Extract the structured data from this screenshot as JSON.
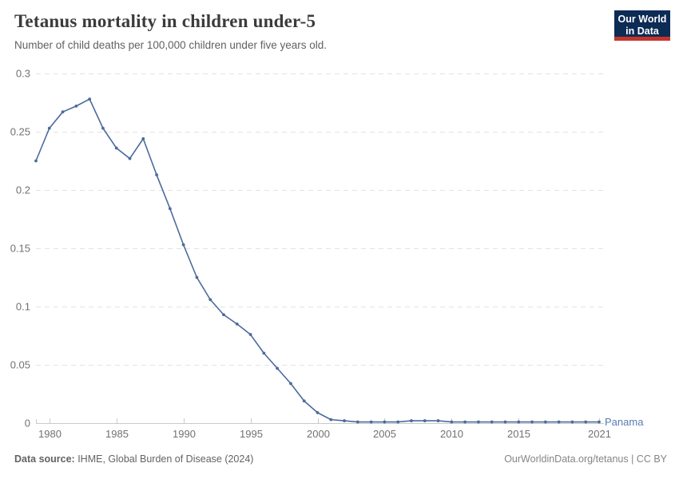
{
  "header": {
    "title": "Tetanus mortality in children under-5",
    "subtitle": "Number of child deaths per 100,000 children under five years old.",
    "logo": {
      "line1": "Our World",
      "line2": "in Data"
    }
  },
  "chart_data": {
    "type": "line",
    "title": "Tetanus mortality in children under-5",
    "subtitle": "Number of child deaths per 100,000 children under five years old.",
    "xlabel": "",
    "ylabel": "",
    "xlim": [
      1979,
      2021
    ],
    "ylim": [
      0,
      0.3
    ],
    "grid": "horizontal-dashed",
    "legend_position": "end-of-line-label",
    "x_ticks": [
      1980,
      1985,
      1990,
      1995,
      2000,
      2005,
      2010,
      2015,
      2021
    ],
    "y_ticks": [
      0,
      0.05,
      0.1,
      0.15,
      0.2,
      0.25,
      0.3
    ],
    "y_tick_labels": [
      "0",
      "0.05",
      "0.1",
      "0.15",
      "0.2",
      "0.25",
      "0.3"
    ],
    "series": [
      {
        "name": "Panama",
        "color": "#4c6a9c",
        "x": [
          1979,
          1980,
          1981,
          1982,
          1983,
          1984,
          1985,
          1986,
          1987,
          1988,
          1989,
          1990,
          1991,
          1992,
          1993,
          1994,
          1995,
          1996,
          1997,
          1998,
          1999,
          2000,
          2001,
          2002,
          2003,
          2004,
          2005,
          2006,
          2007,
          2008,
          2009,
          2010,
          2011,
          2012,
          2013,
          2014,
          2015,
          2016,
          2017,
          2018,
          2019,
          2020,
          2021
        ],
        "values": [
          0.225,
          0.253,
          0.267,
          0.272,
          0.278,
          0.253,
          0.236,
          0.227,
          0.244,
          0.213,
          0.184,
          0.153,
          0.125,
          0.106,
          0.093,
          0.085,
          0.076,
          0.06,
          0.047,
          0.034,
          0.019,
          0.009,
          0.003,
          0.002,
          0.001,
          0.001,
          0.001,
          0.001,
          0.002,
          0.002,
          0.002,
          0.001,
          0.001,
          0.001,
          0.001,
          0.001,
          0.001,
          0.001,
          0.001,
          0.001,
          0.001,
          0.001,
          0.001
        ]
      }
    ]
  },
  "footer": {
    "source_label": "Data source:",
    "source_text": " IHME, Global Burden of Disease (2024)",
    "credit": "OurWorldinData.org/tetanus | CC BY"
  },
  "colors": {
    "line": "#4c6a9c",
    "entity_label": "#577bb2",
    "grid": "#e3e3e3",
    "axis": "#c9c9c9",
    "tick_label": "#71716e",
    "title": "#3b3b3b",
    "subtitle": "#616161",
    "footer": "#636363",
    "credit": "#858585",
    "logo_bg": "#0c2b55",
    "logo_accent": "#c5352c"
  }
}
